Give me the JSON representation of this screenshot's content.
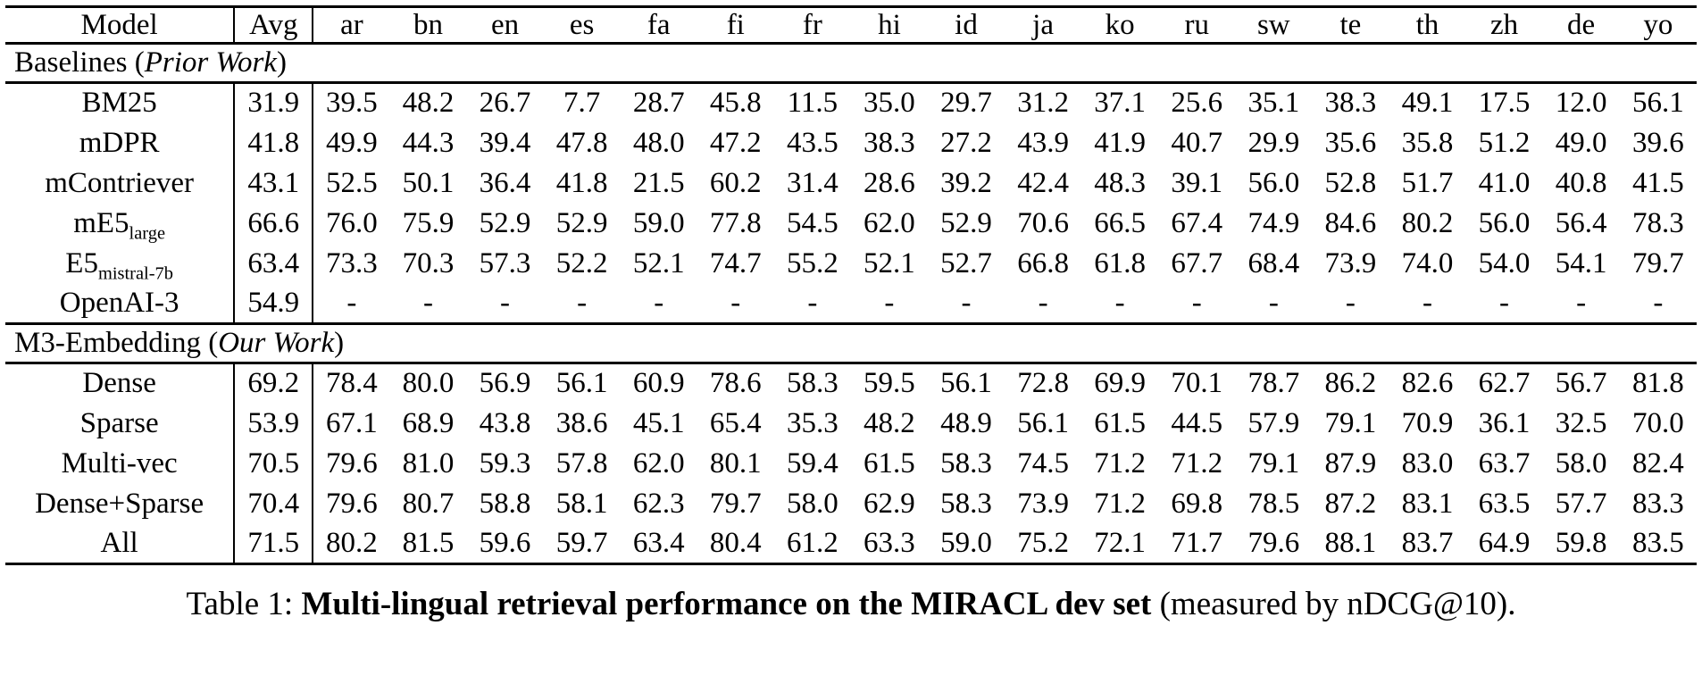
{
  "table": {
    "columns": [
      "Model",
      "Avg",
      "ar",
      "bn",
      "en",
      "es",
      "fa",
      "fi",
      "fr",
      "hi",
      "id",
      "ja",
      "ko",
      "ru",
      "sw",
      "te",
      "th",
      "zh",
      "de",
      "yo"
    ],
    "rows": [
      {
        "type": "section",
        "prefix": "Baselines (",
        "italic": "Prior Work",
        "suffix": ")"
      },
      {
        "type": "data",
        "model": "BM25",
        "avg": "31.9",
        "values": [
          "39.5",
          "48.2",
          "26.7",
          "7.7",
          "28.7",
          "45.8",
          "11.5",
          "35.0",
          "29.7",
          "31.2",
          "37.1",
          "25.6",
          "35.1",
          "38.3",
          "49.1",
          "17.5",
          "12.0",
          "56.1"
        ]
      },
      {
        "type": "data",
        "model": "mDPR",
        "avg": "41.8",
        "values": [
          "49.9",
          "44.3",
          "39.4",
          "47.8",
          "48.0",
          "47.2",
          "43.5",
          "38.3",
          "27.2",
          "43.9",
          "41.9",
          "40.7",
          "29.9",
          "35.6",
          "35.8",
          "51.2",
          "49.0",
          "39.6"
        ]
      },
      {
        "type": "data",
        "model": "mContriever",
        "avg": "43.1",
        "values": [
          "52.5",
          "50.1",
          "36.4",
          "41.8",
          "21.5",
          "60.2",
          "31.4",
          "28.6",
          "39.2",
          "42.4",
          "48.3",
          "39.1",
          "56.0",
          "52.8",
          "51.7",
          "41.0",
          "40.8",
          "41.5"
        ]
      },
      {
        "type": "data",
        "model": "mE5",
        "sub": "large",
        "avg": "66.6",
        "values": [
          "76.0",
          "75.9",
          "52.9",
          "52.9",
          "59.0",
          "77.8",
          "54.5",
          "62.0",
          "52.9",
          "70.6",
          "66.5",
          "67.4",
          "74.9",
          "84.6",
          "80.2",
          "56.0",
          "56.4",
          "78.3"
        ]
      },
      {
        "type": "data",
        "model": "E5",
        "sub": "mistral-7b",
        "avg": "63.4",
        "values": [
          "73.3",
          "70.3",
          "57.3",
          "52.2",
          "52.1",
          "74.7",
          "55.2",
          "52.1",
          "52.7",
          "66.8",
          "61.8",
          "67.7",
          "68.4",
          "73.9",
          "74.0",
          "54.0",
          "54.1",
          "79.7"
        ]
      },
      {
        "type": "data",
        "model": "OpenAI-3",
        "avg": "54.9",
        "values": [
          "-",
          "-",
          "-",
          "-",
          "-",
          "-",
          "-",
          "-",
          "-",
          "-",
          "-",
          "-",
          "-",
          "-",
          "-",
          "-",
          "-",
          "-"
        ]
      },
      {
        "type": "section",
        "prefix": "M3-Embedding (",
        "italic": "Our Work",
        "suffix": ")"
      },
      {
        "type": "data",
        "model": "Dense",
        "avg": "69.2",
        "values": [
          "78.4",
          "80.0",
          "56.9",
          "56.1",
          "60.9",
          "78.6",
          "58.3",
          "59.5",
          "56.1",
          "72.8",
          "69.9",
          "70.1",
          "78.7",
          "86.2",
          "82.6",
          "62.7",
          "56.7",
          "81.8"
        ]
      },
      {
        "type": "data",
        "model": "Sparse",
        "avg": "53.9",
        "values": [
          "67.1",
          "68.9",
          "43.8",
          "38.6",
          "45.1",
          "65.4",
          "35.3",
          "48.2",
          "48.9",
          "56.1",
          "61.5",
          "44.5",
          "57.9",
          "79.1",
          "70.9",
          "36.1",
          "32.5",
          "70.0"
        ]
      },
      {
        "type": "data",
        "model": "Multi-vec",
        "avg": "70.5",
        "values": [
          "79.6",
          "81.0",
          "59.3",
          "57.8",
          "62.0",
          "80.1",
          "59.4",
          "61.5",
          "58.3",
          "74.5",
          "71.2",
          "71.2",
          "79.1",
          "87.9",
          "83.0",
          "63.7",
          "58.0",
          "82.4"
        ]
      },
      {
        "type": "data",
        "model": "Dense+Sparse",
        "avg": "70.4",
        "values": [
          "79.6",
          "80.7",
          "58.8",
          "58.1",
          "62.3",
          "79.7",
          "58.0",
          "62.9",
          "58.3",
          "73.9",
          "71.2",
          "69.8",
          "78.5",
          "87.2",
          "83.1",
          "63.5",
          "57.7",
          "83.3"
        ]
      },
      {
        "type": "data",
        "model": "All",
        "bold": true,
        "avg": "71.5",
        "values": [
          "80.2",
          "81.5",
          "59.6",
          "59.7",
          "63.4",
          "80.4",
          "61.2",
          "63.3",
          "59.0",
          "75.2",
          "72.1",
          "71.7",
          "79.6",
          "88.1",
          "83.7",
          "64.9",
          "59.8",
          "83.5"
        ]
      }
    ]
  },
  "caption": {
    "prefix": "Table 1: ",
    "bold": "Multi-lingual retrieval performance on the MIRACL dev set",
    "suffix": " (measured by nDCG@10)."
  }
}
